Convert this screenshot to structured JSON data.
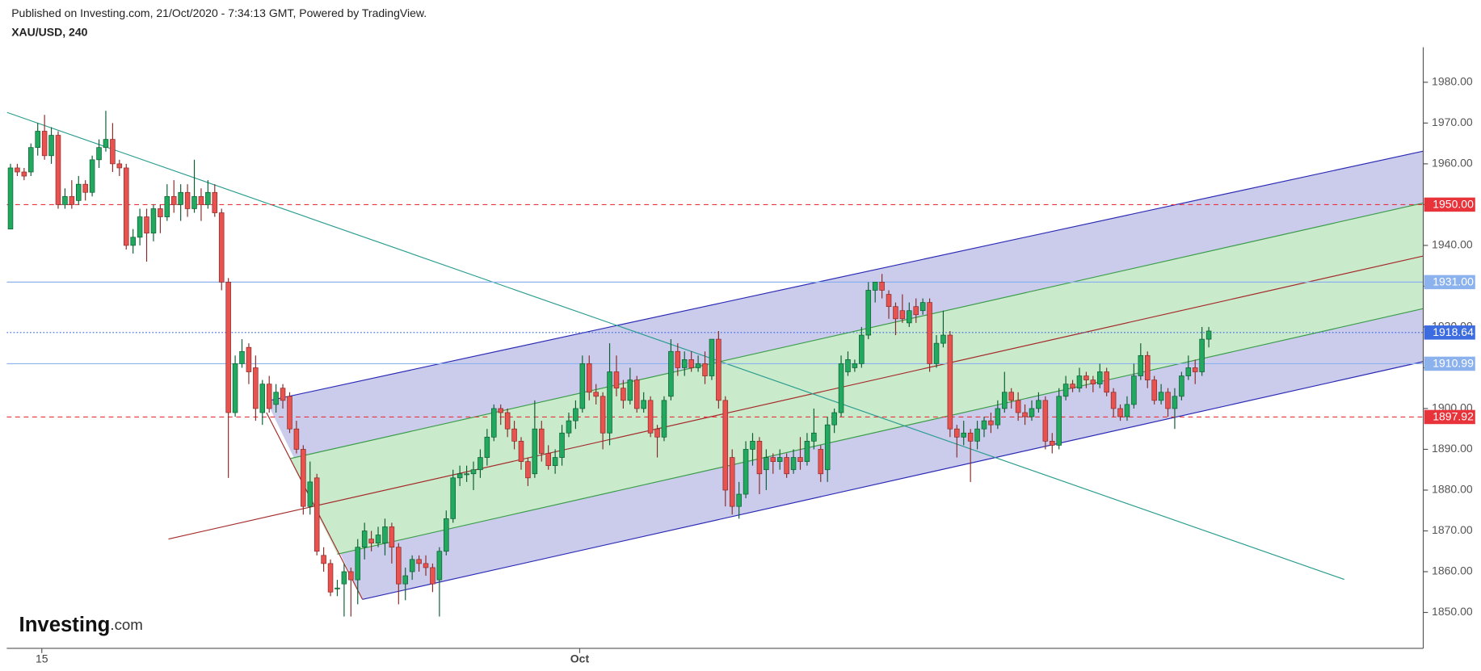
{
  "header": {
    "published": "Published on Investing.com, 21/Oct/2020 - 7:34:13 GMT, Powered by TradingView.",
    "logo": "Investing",
    "logo_suffix": ".com"
  },
  "chart_data": {
    "type": "candlestick",
    "title": "XAU/USD, 240",
    "up_color": "#22a85f",
    "down_color": "#e8524f",
    "xlim": [
      -0.55,
      207.5
    ],
    "ylim": [
      1841.2,
      1988.6
    ],
    "xticks": [
      {
        "value": 4.6,
        "label": "15"
      },
      {
        "value": 83.6,
        "label": "Oct"
      }
    ],
    "yticks": [
      {
        "value": 1850,
        "label": "1850.00"
      },
      {
        "value": 1860,
        "label": "1860.00"
      },
      {
        "value": 1870,
        "label": "1870.00"
      },
      {
        "value": 1880,
        "label": "1880.00"
      },
      {
        "value": 1890,
        "label": "1890.00"
      },
      {
        "value": 1900,
        "label": "1900.00"
      },
      {
        "value": 1910,
        "label": "1910.00"
      },
      {
        "value": 1920,
        "label": "1920.00"
      },
      {
        "value": 1930,
        "label": "1930.00"
      },
      {
        "value": 1940,
        "label": "1940.00"
      },
      {
        "value": 1950,
        "label": "1950.00"
      },
      {
        "value": 1960,
        "label": "1960.00"
      },
      {
        "value": 1970,
        "label": "1970.00"
      },
      {
        "value": 1980,
        "label": "1980.00"
      }
    ],
    "price_lines": [
      {
        "value": 1950,
        "label": "1950.00",
        "color": "#e8333a",
        "style": "dashed"
      },
      {
        "value": 1931,
        "label": "1931.00",
        "color": "#8cb2ee",
        "style": "solid"
      },
      {
        "value": 1918.64,
        "label": "1918.64",
        "color": "#3d6be0",
        "style": "dotted"
      },
      {
        "value": 1910.99,
        "label": "1910.99",
        "color": "#8cb2ee",
        "style": "solid"
      },
      {
        "value": 1897.92,
        "label": "1897.92",
        "color": "#e8333a",
        "style": "dashed"
      }
    ],
    "drawings": [
      {
        "shape": "polygon",
        "color": "#cbcbec",
        "points": [
          [
            37.6,
            1901.8
          ],
          [
            207.5,
            1963.1
          ],
          [
            207.5,
            1911.5
          ],
          [
            51.7,
            1853.2
          ]
        ]
      },
      {
        "shape": "polygon",
        "color": "#c9eacb",
        "points": [
          [
            41,
            1887.7
          ],
          [
            207.5,
            1950.4
          ],
          [
            207.5,
            1924.5
          ],
          [
            48,
            1864.3
          ]
        ]
      },
      {
        "shape": "line",
        "color": "#2a2ab5",
        "points": [
          [
            37.6,
            1901.8
          ],
          [
            207.5,
            1963.1
          ]
        ]
      },
      {
        "shape": "line",
        "color": "#2a2ab5",
        "points": [
          [
            51.7,
            1853.2
          ],
          [
            207.5,
            1911.5
          ]
        ]
      },
      {
        "shape": "line",
        "color": "#3a9c48",
        "points": [
          [
            41,
            1887.7
          ],
          [
            207.5,
            1950.4
          ]
        ]
      },
      {
        "shape": "line",
        "color": "#3a9c48",
        "points": [
          [
            48,
            1864.3
          ],
          [
            207.5,
            1924.5
          ]
        ]
      },
      {
        "shape": "line",
        "color": "#a52a2a",
        "points": [
          [
            23.2,
            1868
          ],
          [
            207.5,
            1937.4
          ]
        ]
      },
      {
        "shape": "line",
        "color": "#a52a2a",
        "points": [
          [
            37.6,
            1899
          ],
          [
            51.7,
            1853.2
          ]
        ]
      },
      {
        "shape": "line",
        "color": "#2a9d8f",
        "points": [
          [
            -0.5,
            1972.6
          ],
          [
            195.9,
            1858.1
          ]
        ]
      }
    ],
    "candles": [
      [
        1944,
        1960,
        1944,
        1959
      ],
      [
        1959,
        1960,
        1957,
        1958
      ],
      [
        1958,
        1959,
        1956,
        1957
      ],
      [
        1958,
        1965,
        1957,
        1964
      ],
      [
        1964,
        1970,
        1962,
        1968
      ],
      [
        1968,
        1972,
        1961,
        1962
      ],
      [
        1962,
        1969,
        1960,
        1967
      ],
      [
        1967,
        1968,
        1949,
        1950
      ],
      [
        1950,
        1954,
        1949,
        1952
      ],
      [
        1952,
        1956,
        1949,
        1950
      ],
      [
        1951,
        1957,
        1950,
        1955
      ],
      [
        1955,
        1956,
        1951,
        1953
      ],
      [
        1953,
        1962,
        1952,
        1961
      ],
      [
        1961,
        1966,
        1959,
        1964
      ],
      [
        1964,
        1973,
        1963,
        1966
      ],
      [
        1966,
        1970,
        1958,
        1960
      ],
      [
        1960,
        1961,
        1957,
        1959
      ],
      [
        1959,
        1960,
        1939,
        1940
      ],
      [
        1940,
        1944,
        1938,
        1942
      ],
      [
        1942,
        1949,
        1940,
        1947
      ],
      [
        1947,
        1949,
        1936,
        1943
      ],
      [
        1943,
        1950,
        1941,
        1949
      ],
      [
        1949,
        1950,
        1943,
        1947
      ],
      [
        1947,
        1955,
        1946,
        1952
      ],
      [
        1952,
        1956,
        1948,
        1950
      ],
      [
        1950,
        1955,
        1946,
        1953
      ],
      [
        1953,
        1955,
        1947,
        1949
      ],
      [
        1949,
        1961,
        1948,
        1952
      ],
      [
        1952,
        1954,
        1946,
        1950
      ],
      [
        1950,
        1956,
        1949,
        1953
      ],
      [
        1953,
        1955,
        1947,
        1948
      ],
      [
        1948,
        1949,
        1929,
        1931
      ],
      [
        1931,
        1932,
        1883,
        1899
      ],
      [
        1899,
        1913,
        1898,
        1911
      ],
      [
        1911,
        1917,
        1910,
        1914
      ],
      [
        1915,
        1916,
        1906,
        1909
      ],
      [
        1910,
        1913,
        1897,
        1900
      ],
      [
        1899,
        1907,
        1896,
        1906
      ],
      [
        1906,
        1908,
        1899,
        1900
      ],
      [
        1901,
        1906,
        1899,
        1904
      ],
      [
        1905,
        1906,
        1900,
        1902
      ],
      [
        1903,
        1904,
        1894,
        1895
      ],
      [
        1895,
        1897,
        1889,
        1890
      ],
      [
        1890,
        1891,
        1874,
        1876
      ],
      [
        1876,
        1887,
        1874,
        1882
      ],
      [
        1883,
        1884,
        1864,
        1865
      ],
      [
        1864,
        1866,
        1860,
        1862
      ],
      [
        1862,
        1863,
        1854,
        1855
      ],
      [
        1856,
        1858,
        1854,
        1856
      ],
      [
        1857,
        1862,
        1849,
        1860
      ],
      [
        1860,
        1861,
        1849,
        1858
      ],
      [
        1858,
        1868,
        1852,
        1866
      ],
      [
        1866,
        1872,
        1863,
        1870
      ],
      [
        1868,
        1870,
        1865,
        1867
      ],
      [
        1867,
        1871,
        1866,
        1869
      ],
      [
        1867,
        1873,
        1864,
        1871
      ],
      [
        1871,
        1872,
        1862,
        1866
      ],
      [
        1866,
        1867,
        1852,
        1857
      ],
      [
        1857,
        1861,
        1853,
        1859
      ],
      [
        1860,
        1864,
        1858,
        1863
      ],
      [
        1863,
        1864,
        1860,
        1862
      ],
      [
        1862,
        1864,
        1859,
        1861
      ],
      [
        1861,
        1862,
        1855,
        1857
      ],
      [
        1858,
        1866,
        1849,
        1865
      ],
      [
        1865,
        1875,
        1864,
        1873
      ],
      [
        1873,
        1885,
        1872,
        1883
      ],
      [
        1883,
        1886,
        1881,
        1884
      ],
      [
        1884,
        1886,
        1882,
        1884
      ],
      [
        1884,
        1887,
        1880,
        1885
      ],
      [
        1885,
        1890,
        1883,
        1888
      ],
      [
        1888,
        1895,
        1886,
        1893
      ],
      [
        1893,
        1901,
        1892,
        1900
      ],
      [
        1900,
        1901,
        1896,
        1899
      ],
      [
        1899,
        1900,
        1893,
        1895
      ],
      [
        1895,
        1897,
        1890,
        1892
      ],
      [
        1892,
        1893,
        1885,
        1887
      ],
      [
        1887,
        1888,
        1881,
        1883
      ],
      [
        1884,
        1902,
        1883,
        1895
      ],
      [
        1895,
        1897,
        1887,
        1889
      ],
      [
        1889,
        1891,
        1885,
        1886
      ],
      [
        1886,
        1890,
        1884,
        1888
      ],
      [
        1888,
        1896,
        1886,
        1894
      ],
      [
        1894,
        1899,
        1893,
        1897
      ],
      [
        1897,
        1902,
        1895,
        1900
      ],
      [
        1900,
        1913,
        1899,
        1911
      ],
      [
        1911,
        1913,
        1902,
        1904
      ],
      [
        1904,
        1906,
        1901,
        1903
      ],
      [
        1903,
        1904,
        1890,
        1894
      ],
      [
        1894,
        1916,
        1891,
        1909
      ],
      [
        1909,
        1913,
        1903,
        1905
      ],
      [
        1905,
        1907,
        1900,
        1902
      ],
      [
        1902,
        1910,
        1901,
        1907
      ],
      [
        1907,
        1908,
        1899,
        1900
      ],
      [
        1900,
        1904,
        1899,
        1902
      ],
      [
        1902,
        1903,
        1893,
        1894
      ],
      [
        1895,
        1896,
        1888,
        1893
      ],
      [
        1893,
        1903,
        1892,
        1902
      ],
      [
        1903,
        1917,
        1902,
        1914
      ],
      [
        1914,
        1916,
        1908,
        1910
      ],
      [
        1910,
        1914,
        1908,
        1912
      ],
      [
        1912,
        1914,
        1909,
        1910
      ],
      [
        1910,
        1913,
        1909,
        1911
      ],
      [
        1911,
        1914,
        1906,
        1908
      ],
      [
        1908,
        1917,
        1907,
        1917
      ],
      [
        1917,
        1919,
        1900,
        1902
      ],
      [
        1902,
        1903,
        1876,
        1880
      ],
      [
        1888,
        1890,
        1874,
        1876
      ],
      [
        1876,
        1882,
        1873,
        1879
      ],
      [
        1879,
        1892,
        1878,
        1890
      ],
      [
        1890,
        1894,
        1886,
        1892
      ],
      [
        1892,
        1893,
        1879,
        1884
      ],
      [
        1885,
        1890,
        1880,
        1888
      ],
      [
        1888,
        1889,
        1884,
        1887
      ],
      [
        1887,
        1890,
        1885,
        1888
      ],
      [
        1888,
        1889,
        1883,
        1884
      ],
      [
        1885,
        1890,
        1884,
        1888
      ],
      [
        1888,
        1893,
        1885,
        1887
      ],
      [
        1887,
        1894,
        1886,
        1892
      ],
      [
        1892,
        1900,
        1890,
        1894
      ],
      [
        1890,
        1891,
        1882,
        1884
      ],
      [
        1885,
        1898,
        1882,
        1896
      ],
      [
        1896,
        1900,
        1894,
        1899
      ],
      [
        1899,
        1913,
        1898,
        1911
      ],
      [
        1909,
        1914,
        1908,
        1912
      ],
      [
        1910,
        1912,
        1909,
        1911
      ],
      [
        1911,
        1920,
        1910,
        1918
      ],
      [
        1918,
        1931,
        1917,
        1929
      ],
      [
        1929,
        1931,
        1926,
        1931
      ],
      [
        1931,
        1933,
        1927,
        1929
      ],
      [
        1928,
        1929,
        1922,
        1925
      ],
      [
        1925,
        1926,
        1918,
        1922
      ],
      [
        1924,
        1928,
        1921,
        1922
      ],
      [
        1921,
        1926,
        1920,
        1924
      ],
      [
        1925,
        1927,
        1921,
        1923
      ],
      [
        1924,
        1927,
        1923,
        1926
      ],
      [
        1926,
        1927,
        1909,
        1911
      ],
      [
        1911,
        1918,
        1910,
        1916
      ],
      [
        1916,
        1924,
        1915,
        1918
      ],
      [
        1918,
        1919,
        1893,
        1895
      ],
      [
        1895,
        1896,
        1888,
        1893
      ],
      [
        1893,
        1897,
        1891,
        1894
      ],
      [
        1894,
        1895,
        1882,
        1892
      ],
      [
        1892,
        1897,
        1890,
        1895
      ],
      [
        1895,
        1898,
        1893,
        1897
      ],
      [
        1897,
        1899,
        1894,
        1896
      ],
      [
        1896,
        1902,
        1895,
        1900
      ],
      [
        1900,
        1909,
        1899,
        1904
      ],
      [
        1904,
        1905,
        1900,
        1902
      ],
      [
        1902,
        1904,
        1897,
        1899
      ],
      [
        1899,
        1901,
        1896,
        1898
      ],
      [
        1898,
        1902,
        1897,
        1900
      ],
      [
        1900,
        1904,
        1899,
        1902
      ],
      [
        1902,
        1903,
        1890,
        1892
      ],
      [
        1892,
        1894,
        1889,
        1891
      ],
      [
        1891,
        1905,
        1890,
        1903
      ],
      [
        1903,
        1908,
        1902,
        1906
      ],
      [
        1906,
        1907,
        1904,
        1905
      ],
      [
        1905,
        1910,
        1904,
        1908
      ],
      [
        1908,
        1909,
        1905,
        1907
      ],
      [
        1907,
        1908,
        1904,
        1906
      ],
      [
        1906,
        1911,
        1905,
        1909
      ],
      [
        1909,
        1910,
        1903,
        1904
      ],
      [
        1904,
        1905,
        1898,
        1900
      ],
      [
        1900,
        1901,
        1897,
        1898
      ],
      [
        1898,
        1903,
        1897,
        1901
      ],
      [
        1901,
        1911,
        1900,
        1908
      ],
      [
        1908,
        1916,
        1907,
        1913
      ],
      [
        1913,
        1914,
        1905,
        1907
      ],
      [
        1907,
        1908,
        1901,
        1902
      ],
      [
        1902,
        1906,
        1901,
        1904
      ],
      [
        1904,
        1905,
        1898,
        1900
      ],
      [
        1900,
        1905,
        1895,
        1903
      ],
      [
        1903,
        1909,
        1902,
        1908
      ],
      [
        1908,
        1913,
        1907,
        1910
      ],
      [
        1910,
        1912,
        1906,
        1909
      ],
      [
        1909,
        1920,
        1908,
        1917
      ],
      [
        1917,
        1920,
        1915,
        1919
      ]
    ]
  }
}
